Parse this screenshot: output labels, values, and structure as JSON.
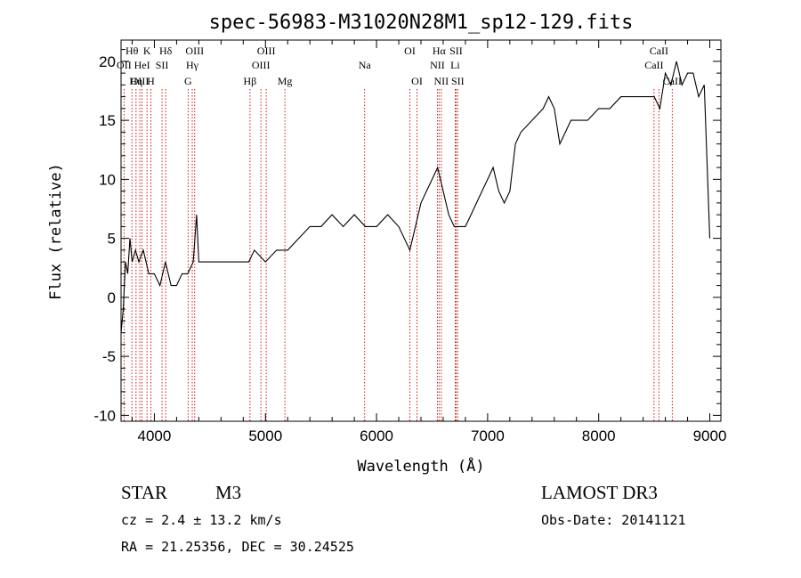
{
  "chart_data": {
    "type": "line",
    "title": "spec-56983-M31020N28M1_sp12-129.fits",
    "xlabel": "Wavelength (Å)",
    "ylabel": "Flux (relative)",
    "xlim": [
      3700,
      9100
    ],
    "ylim": [
      -10.5,
      21.8
    ],
    "x_ticks": [
      4000,
      5000,
      6000,
      7000,
      8000,
      9000
    ],
    "y_ticks": [
      -10,
      -5,
      0,
      5,
      10,
      15,
      20
    ],
    "series": [
      {
        "name": "flux",
        "x": [
          3700,
          3720,
          3740,
          3760,
          3780,
          3800,
          3830,
          3860,
          3900,
          3950,
          4000,
          4050,
          4100,
          4150,
          4200,
          4250,
          4300,
          4350,
          4380,
          4400,
          4450,
          4500,
          4600,
          4700,
          4800,
          4850,
          4900,
          5000,
          5100,
          5200,
          5300,
          5400,
          5500,
          5600,
          5700,
          5800,
          5900,
          6000,
          6100,
          6200,
          6300,
          6350,
          6400,
          6450,
          6500,
          6550,
          6600,
          6650,
          6700,
          6750,
          6800,
          6850,
          6900,
          6950,
          7000,
          7050,
          7100,
          7150,
          7200,
          7250,
          7300,
          7400,
          7500,
          7550,
          7600,
          7650,
          7700,
          7750,
          7800,
          7900,
          8000,
          8100,
          8200,
          8300,
          8400,
          8500,
          8550,
          8600,
          8650,
          8700,
          8750,
          8800,
          8850,
          8900,
          8950,
          9000
        ],
        "y": [
          -3,
          -1,
          3,
          2,
          5,
          3,
          4,
          3,
          4,
          2,
          2,
          1,
          3,
          1,
          1,
          2,
          2,
          3,
          7,
          3,
          3,
          3,
          3,
          3,
          3,
          3,
          4,
          3,
          4,
          4,
          5,
          6,
          6,
          7,
          6,
          7,
          6,
          6,
          7,
          6,
          4,
          6,
          8,
          9,
          10,
          11,
          9,
          7,
          6,
          6,
          6,
          7,
          8,
          9,
          10,
          11,
          9,
          8,
          9,
          13,
          14,
          15,
          16,
          17,
          16,
          13,
          14,
          15,
          15,
          15,
          16,
          16,
          17,
          17,
          17,
          17,
          16,
          19,
          18,
          20,
          18,
          19,
          19,
          17,
          18,
          5
        ]
      }
    ],
    "line_markers": [
      {
        "label": "Hθ",
        "wavelength": 3798,
        "row": 1
      },
      {
        "label": "OII",
        "wavelength": 3727,
        "row": 2
      },
      {
        "label": "OIII",
        "wavelength": 3869,
        "row": 3
      },
      {
        "label": "Hη",
        "wavelength": 3835,
        "row": 3
      },
      {
        "label": "HeI",
        "wavelength": 3889,
        "row": 2
      },
      {
        "label": "K",
        "wavelength": 3934,
        "row": 1
      },
      {
        "label": "H",
        "wavelength": 3968,
        "row": 3
      },
      {
        "label": "SII",
        "wavelength": 4069,
        "row": 2
      },
      {
        "label": "Hδ",
        "wavelength": 4102,
        "row": 1
      },
      {
        "label": "G",
        "wavelength": 4304,
        "row": 3
      },
      {
        "label": "Hγ",
        "wavelength": 4341,
        "row": 2
      },
      {
        "label": "OIII",
        "wavelength": 4363,
        "row": 1
      },
      {
        "label": "Hβ",
        "wavelength": 4861,
        "row": 3
      },
      {
        "label": "OIII",
        "wavelength": 4959,
        "row": 2
      },
      {
        "label": "OIII",
        "wavelength": 5007,
        "row": 1
      },
      {
        "label": "Mg",
        "wavelength": 5175,
        "row": 3
      },
      {
        "label": "Na",
        "wavelength": 5893,
        "row": 2
      },
      {
        "label": "OI",
        "wavelength": 6300,
        "row": 1
      },
      {
        "label": "OI",
        "wavelength": 6364,
        "row": 3
      },
      {
        "label": "NII",
        "wavelength": 6548,
        "row": 2
      },
      {
        "label": "Hα",
        "wavelength": 6563,
        "row": 1
      },
      {
        "label": "NII",
        "wavelength": 6583,
        "row": 3
      },
      {
        "label": "Li",
        "wavelength": 6708,
        "row": 2
      },
      {
        "label": "SII",
        "wavelength": 6716,
        "row": 1
      },
      {
        "label": "SII",
        "wavelength": 6731,
        "row": 3
      },
      {
        "label": "CaII",
        "wavelength": 8498,
        "row": 2
      },
      {
        "label": "CaII",
        "wavelength": 8542,
        "row": 1
      },
      {
        "label": "CaII",
        "wavelength": 8662,
        "row": 3
      }
    ]
  },
  "info": {
    "object_class": "STAR",
    "subclass": "M3",
    "survey": "LAMOST DR3",
    "cz": "cz = 2.4 ± 13.2 km/s",
    "obs_date": "Obs-Date: 20141121",
    "coords": "RA =  21.25356, DEC =  30.24525"
  },
  "colors": {
    "line_marker": "#cc0000",
    "spectrum": "#000000"
  }
}
